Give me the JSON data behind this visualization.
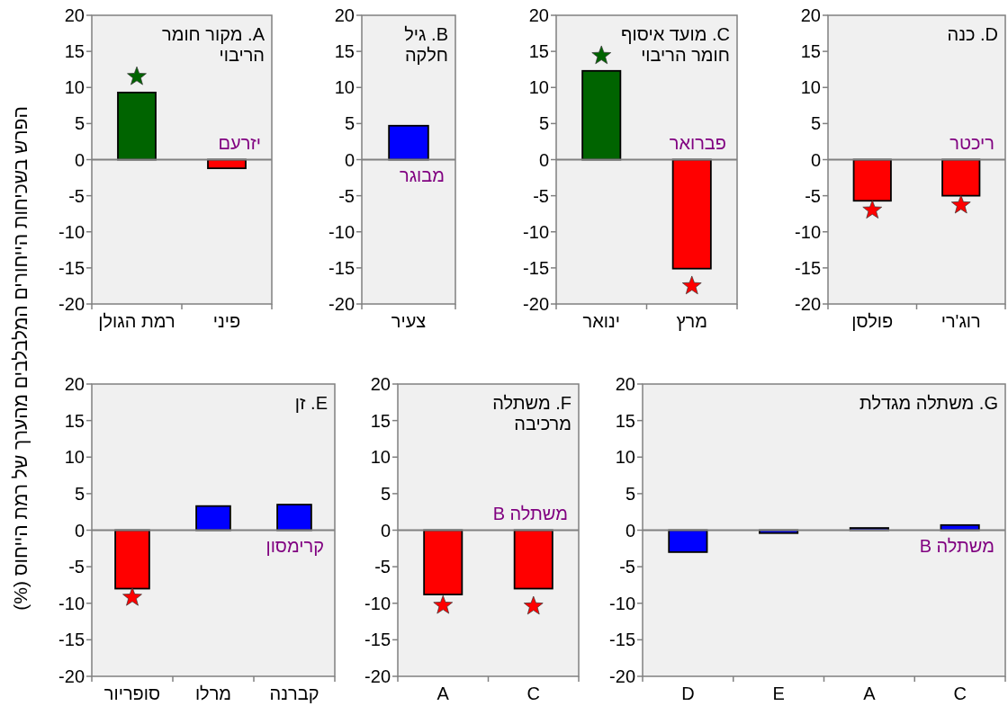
{
  "chart_data": [
    {
      "type": "bar",
      "title": "A. מקור חומר הריבוי",
      "ylabel": "הפרש בשכיחות הייחורים המלבלבים מהערך של רמת הייחוס (%)",
      "categories": [
        "רמת הגולן",
        "פיני"
      ],
      "ylim": [
        -20,
        20
      ],
      "yticks": [
        -20,
        -15,
        -10,
        -5,
        0,
        5,
        10,
        15,
        20
      ],
      "series": [
        {
          "type": "bar",
          "values": [
            9.3,
            -1.2
          ],
          "colors": [
            "#006400",
            "#ff0000"
          ]
        },
        {
          "type": "scatter",
          "marker": "star",
          "x": [
            "רמת הגולן"
          ],
          "values": [
            11.5
          ],
          "colors": [
            "#006400"
          ]
        }
      ],
      "annotations": [
        {
          "text": "יזרעם",
          "y": 0
        }
      ]
    },
    {
      "type": "bar",
      "title": "B. גיל חלקה",
      "categories": [
        "צעיר"
      ],
      "ylim": [
        -20,
        20
      ],
      "yticks": [
        -20,
        -15,
        -10,
        -5,
        0,
        5,
        10,
        15,
        20
      ],
      "series": [
        {
          "type": "bar",
          "values": [
            4.7
          ],
          "colors": [
            "#0000ff"
          ]
        }
      ],
      "annotations": [
        {
          "text": "מבוגר",
          "y": 0
        }
      ]
    },
    {
      "type": "bar",
      "title": "C. מועד איסוף חומר הריבוי",
      "categories": [
        "ינואר",
        "מרץ"
      ],
      "ylim": [
        -20,
        20
      ],
      "yticks": [
        -20,
        -15,
        -10,
        -5,
        0,
        5,
        10,
        15,
        20
      ],
      "series": [
        {
          "type": "bar",
          "values": [
            12.3,
            -15.1
          ],
          "colors": [
            "#006400",
            "#ff0000"
          ]
        },
        {
          "type": "scatter",
          "marker": "star",
          "x": [
            "ינואר",
            "מרץ"
          ],
          "values": [
            14.4,
            -17.5
          ],
          "colors": [
            "#006400",
            "#ff0000"
          ]
        }
      ],
      "annotations": [
        {
          "text": "פברואר",
          "y": 0
        }
      ]
    },
    {
      "type": "bar",
      "title": "D. כנה",
      "categories": [
        "פולסן",
        "רוג'רי"
      ],
      "ylim": [
        -20,
        20
      ],
      "yticks": [
        -20,
        -15,
        -10,
        -5,
        0,
        5,
        10,
        15,
        20
      ],
      "series": [
        {
          "type": "bar",
          "values": [
            -5.7,
            -5.0
          ],
          "colors": [
            "#ff0000",
            "#ff0000"
          ]
        },
        {
          "type": "scatter",
          "marker": "star",
          "x": [
            "פולסן",
            "רוג'רי"
          ],
          "values": [
            -7.0,
            -6.3
          ],
          "colors": [
            "#ff0000",
            "#ff0000"
          ]
        }
      ],
      "annotations": [
        {
          "text": "ריכטר",
          "y": 0
        }
      ]
    },
    {
      "type": "bar",
      "title": "E. זן",
      "categories": [
        "סופריור",
        "מרלו",
        "קברנה"
      ],
      "ylim": [
        -20,
        20
      ],
      "yticks": [
        -20,
        -15,
        -10,
        -5,
        0,
        5,
        10,
        15,
        20
      ],
      "series": [
        {
          "type": "bar",
          "values": [
            -8.0,
            3.3,
            3.5
          ],
          "colors": [
            "#ff0000",
            "#0000ff",
            "#0000ff"
          ]
        },
        {
          "type": "scatter",
          "marker": "star",
          "x": [
            "סופריור"
          ],
          "values": [
            -9.2
          ],
          "colors": [
            "#ff0000"
          ]
        }
      ],
      "annotations": [
        {
          "text": "קרימסון",
          "y": 0
        }
      ]
    },
    {
      "type": "bar",
      "title": "F. משתלה מרכיבה",
      "categories": [
        "A",
        "C"
      ],
      "ylim": [
        -20,
        20
      ],
      "yticks": [
        -20,
        -15,
        -10,
        -5,
        0,
        5,
        10,
        15,
        20
      ],
      "series": [
        {
          "type": "bar",
          "values": [
            -8.8,
            -8.0
          ],
          "colors": [
            "#ff0000",
            "#ff0000"
          ]
        },
        {
          "type": "scatter",
          "marker": "star",
          "x": [
            "A",
            "C"
          ],
          "values": [
            -10.3,
            -10.4
          ],
          "colors": [
            "#ff0000",
            "#ff0000"
          ]
        }
      ],
      "annotations": [
        {
          "text": "משתלה B",
          "y": 0
        }
      ]
    },
    {
      "type": "bar",
      "title": "G. משתלה מגדלת",
      "categories": [
        "D",
        "E",
        "A",
        "C"
      ],
      "ylim": [
        -20,
        20
      ],
      "yticks": [
        -20,
        -15,
        -10,
        -5,
        0,
        5,
        10,
        15,
        20
      ],
      "series": [
        {
          "type": "bar",
          "values": [
            -3.0,
            -0.4,
            0.3,
            0.7
          ],
          "colors": [
            "#0000ff",
            "#0000ff",
            "#0000ff",
            "#0000ff"
          ]
        }
      ],
      "annotations": [
        {
          "text": "משתלה B",
          "y": 0
        }
      ]
    }
  ]
}
